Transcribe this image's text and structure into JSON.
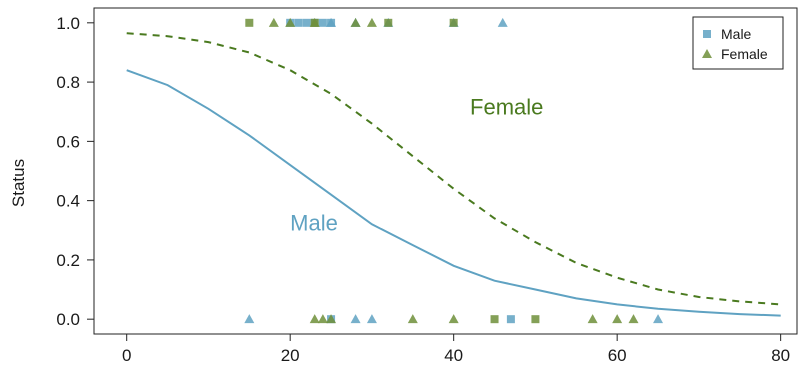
{
  "chart_data": {
    "type": "scatter",
    "title": "",
    "xlabel": "",
    "ylabel": "Status",
    "xlim": [
      -4,
      82
    ],
    "ylim": [
      -0.05,
      1.05
    ],
    "x_ticks": [
      0,
      20,
      40,
      60,
      80
    ],
    "y_ticks": [
      0.0,
      0.2,
      0.4,
      0.6,
      0.8,
      1.0
    ],
    "x_tick_labels": [
      "0",
      "20",
      "40",
      "60",
      "80"
    ],
    "y_tick_labels": [
      "0.0",
      "0.2",
      "0.4",
      "0.6",
      "0.8",
      "1.0"
    ],
    "grid": false,
    "legend": {
      "position": "top-right",
      "entries": [
        {
          "name": "Male",
          "marker": "square",
          "color": "#5fa2c2"
        },
        {
          "name": "Female",
          "marker": "triangle",
          "color": "#6e8f3a"
        }
      ]
    },
    "series": [
      {
        "name": "Male",
        "marker": "square",
        "color": "#5fa2c2",
        "points": [
          {
            "x": 20,
            "y": 1
          },
          {
            "x": 21,
            "y": 1
          },
          {
            "x": 22,
            "y": 1
          },
          {
            "x": 23,
            "y": 1
          },
          {
            "x": 24,
            "y": 1
          },
          {
            "x": 25,
            "y": 1
          },
          {
            "x": 25,
            "y": 0
          },
          {
            "x": 47,
            "y": 0
          }
        ]
      },
      {
        "name": "Male",
        "marker": "triangle",
        "color": "#5fa2c2",
        "points": [
          {
            "x": 25,
            "y": 1
          },
          {
            "x": 28,
            "y": 1
          },
          {
            "x": 32,
            "y": 1
          },
          {
            "x": 40,
            "y": 1
          },
          {
            "x": 46,
            "y": 1
          },
          {
            "x": 15,
            "y": 0
          },
          {
            "x": 28,
            "y": 0
          },
          {
            "x": 30,
            "y": 0
          },
          {
            "x": 65,
            "y": 0
          }
        ]
      },
      {
        "name": "Female",
        "marker": "square",
        "color": "#6e8f3a",
        "points": [
          {
            "x": 15,
            "y": 1
          },
          {
            "x": 23,
            "y": 1
          },
          {
            "x": 32,
            "y": 1
          },
          {
            "x": 40,
            "y": 1
          },
          {
            "x": 45,
            "y": 0
          },
          {
            "x": 50,
            "y": 0
          }
        ]
      },
      {
        "name": "Female",
        "marker": "triangle",
        "color": "#6e8f3a",
        "points": [
          {
            "x": 18,
            "y": 1
          },
          {
            "x": 20,
            "y": 1
          },
          {
            "x": 23,
            "y": 1
          },
          {
            "x": 28,
            "y": 1
          },
          {
            "x": 30,
            "y": 1
          },
          {
            "x": 23,
            "y": 0
          },
          {
            "x": 24,
            "y": 0
          },
          {
            "x": 25,
            "y": 0
          },
          {
            "x": 35,
            "y": 0
          },
          {
            "x": 40,
            "y": 0
          },
          {
            "x": 57,
            "y": 0
          },
          {
            "x": 60,
            "y": 0
          },
          {
            "x": 62,
            "y": 0
          }
        ]
      }
    ],
    "curves": [
      {
        "name": "Male",
        "label": "Male",
        "style": "solid",
        "color": "#5fa2c2",
        "x": [
          0,
          5,
          10,
          15,
          20,
          25,
          30,
          35,
          40,
          45,
          50,
          55,
          60,
          65,
          70,
          75,
          80
        ],
        "y": [
          0.84,
          0.79,
          0.71,
          0.62,
          0.52,
          0.42,
          0.32,
          0.25,
          0.18,
          0.13,
          0.1,
          0.07,
          0.05,
          0.035,
          0.025,
          0.017,
          0.012
        ],
        "label_at": {
          "x": 20,
          "y": 0.3
        }
      },
      {
        "name": "Female",
        "label": "Female",
        "style": "dashed",
        "color": "#4a7a1f",
        "x": [
          0,
          5,
          10,
          15,
          20,
          25,
          30,
          35,
          40,
          45,
          50,
          55,
          60,
          65,
          70,
          75,
          80
        ],
        "y": [
          0.965,
          0.955,
          0.935,
          0.9,
          0.84,
          0.76,
          0.66,
          0.55,
          0.44,
          0.34,
          0.26,
          0.19,
          0.14,
          0.1,
          0.075,
          0.06,
          0.05
        ],
        "label_at": {
          "x": 42,
          "y": 0.69
        }
      }
    ]
  }
}
